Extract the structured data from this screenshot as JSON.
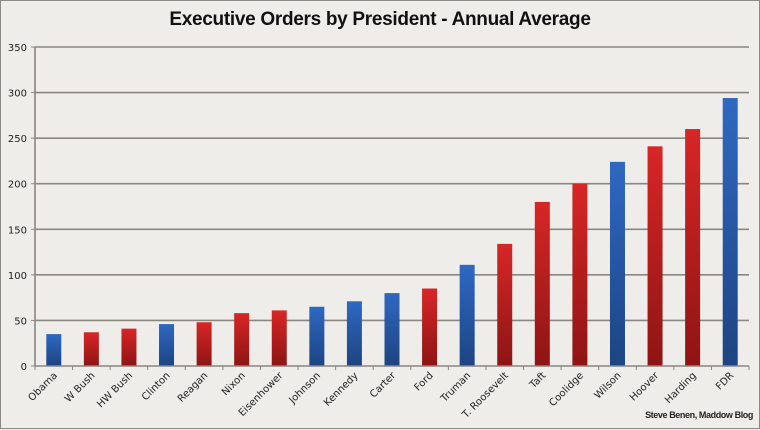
{
  "chart_data": {
    "type": "bar",
    "title": "Executive Orders by President - Annual Average",
    "xlabel": "",
    "ylabel": "",
    "ylim": [
      0,
      350
    ],
    "yticks": [
      0,
      50,
      100,
      150,
      200,
      250,
      300,
      350
    ],
    "grid": true,
    "legend": "none",
    "categories": [
      "Obama",
      "W Bush",
      "HW Bush",
      "Clinton",
      "Reagan",
      "Nixon",
      "Eisenhower",
      "Johnson",
      "Kennedy",
      "Carter",
      "Ford",
      "Truman",
      "T. Roosevelt",
      "Taft",
      "Coolidge",
      "Wilson",
      "Hoover",
      "Harding",
      "FDR"
    ],
    "values": [
      35,
      37,
      41,
      46,
      48,
      58,
      61,
      65,
      71,
      80,
      85,
      111,
      134,
      180,
      200,
      224,
      241,
      260,
      294
    ],
    "party": [
      "D",
      "R",
      "R",
      "D",
      "R",
      "R",
      "R",
      "D",
      "D",
      "D",
      "R",
      "D",
      "R",
      "R",
      "R",
      "D",
      "R",
      "R",
      "D"
    ],
    "colors": {
      "D": "#2b60b4",
      "R": "#cc2020",
      "D_dark": "#1d4482",
      "R_dark": "#8e1414"
    },
    "credit": "Steve Benen, Maddow Blog"
  }
}
